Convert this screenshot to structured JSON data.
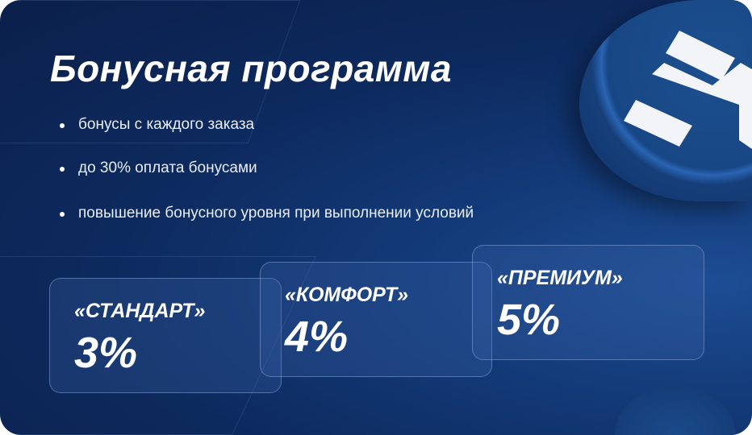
{
  "title": "Бонусная программа",
  "bullets": [
    "бонусы с каждого заказа",
    "до 30% оплата бонусами",
    "повышение бонусного уровня при выполнении условий"
  ],
  "tiers": [
    {
      "name": "«СТАНДАРТ»",
      "percent": "3%"
    },
    {
      "name": "«КОМФОРТ»",
      "percent": "4%"
    },
    {
      "name": "«ПРЕМИУМ»",
      "percent": "5%"
    }
  ],
  "logo_icon": "brand-coin-logo"
}
